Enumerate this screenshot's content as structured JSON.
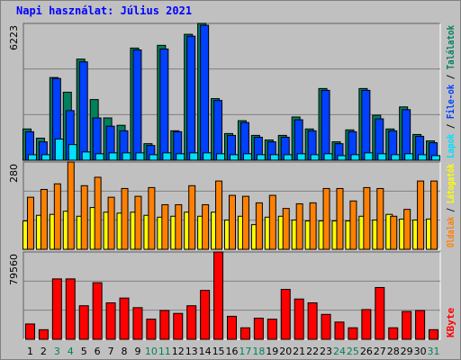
{
  "chart_data": [
    {
      "type": "bar",
      "title": "Napi használat: Július 2021",
      "ylim": [
        0,
        6223
      ],
      "yticks": [
        6223
      ],
      "grid_divisions": 3,
      "legend_separator": " / ",
      "series": [
        {
          "name": "Találatok",
          "color": "#00805c",
          "values": [
            1421,
            1003,
            3761,
            3093,
            4598,
            2759,
            1923,
            1588,
            5100,
            752,
            5225,
            1338,
            5727,
            6223,
            2801,
            1212,
            1797,
            1129,
            920,
            1129,
            1965,
            1421,
            3260,
            836,
            1379,
            3260,
            2048,
            1421,
            2424,
            1170,
            878
          ]
        },
        {
          "name": "File-ok",
          "color": "#0040ff",
          "values": [
            1296,
            836,
            3720,
            2257,
            4473,
            1923,
            1547,
            1338,
            5016,
            669,
            5058,
            1296,
            5643,
            6140,
            2717,
            1129,
            1714,
            1045,
            836,
            1045,
            1839,
            1338,
            3177,
            752,
            1296,
            3177,
            1881,
            1338,
            2299,
            1087,
            794
          ]
        },
        {
          "name": "Lapok",
          "color": "#00e0ff",
          "values": [
            251,
            251,
            961,
            711,
            376,
            293,
            334,
            334,
            334,
            251,
            334,
            293,
            334,
            334,
            293,
            251,
            293,
            251,
            251,
            251,
            293,
            251,
            293,
            209,
            251,
            334,
            293,
            251,
            293,
            251,
            209
          ]
        }
      ]
    },
    {
      "type": "bar",
      "ylim": [
        0,
        280
      ],
      "yticks": [
        280
      ],
      "grid_divisions": 3,
      "legend_separator": " / ",
      "series": [
        {
          "name": "Látogatók",
          "color": "#ffff00",
          "values": [
            91,
            109,
            112,
            122,
            106,
            134,
            119,
            116,
            119,
            109,
            103,
            106,
            119,
            106,
            119,
            94,
            106,
            79,
            103,
            106,
            94,
            91,
            91,
            91,
            91,
            106,
            94,
            112,
            97,
            94,
            97
          ]
        },
        {
          "name": "Oldalak",
          "color": "#ff8000",
          "values": [
            167,
            192,
            210,
            280,
            204,
            231,
            167,
            195,
            170,
            198,
            143,
            143,
            204,
            143,
            219,
            173,
            170,
            149,
            173,
            131,
            146,
            149,
            195,
            195,
            155,
            198,
            195,
            106,
            128,
            219,
            219
          ]
        }
      ]
    },
    {
      "type": "bar",
      "ylim": [
        0,
        79560
      ],
      "yticks": [
        79560
      ],
      "grid_divisions": 3,
      "legend_separator": " / ",
      "categories": [
        "1",
        "2",
        "3",
        "4",
        "5",
        "6",
        "7",
        "8",
        "9",
        "10",
        "11",
        "12",
        "13",
        "14",
        "15",
        "16",
        "17",
        "18",
        "19",
        "20",
        "21",
        "22",
        "23",
        "24",
        "25",
        "26",
        "27",
        "28",
        "29",
        "30",
        "31"
      ],
      "category_colors": [
        "#000000",
        "#000000",
        "#00805c",
        "#00805c",
        "#000000",
        "#000000",
        "#000000",
        "#000000",
        "#000000",
        "#00805c",
        "#00805c",
        "#000000",
        "#000000",
        "#000000",
        "#000000",
        "#000000",
        "#00805c",
        "#00805c",
        "#000000",
        "#000000",
        "#000000",
        "#000000",
        "#000000",
        "#00805c",
        "#00805c",
        "#000000",
        "#000000",
        "#000000",
        "#000000",
        "#000000",
        "#00805c"
      ],
      "series": [
        {
          "name": "KByte",
          "color": "#ff0000",
          "values": [
            13984,
            8740,
            55062,
            55062,
            30590,
            51566,
            33212,
            37582,
            28842,
            18354,
            26220,
            23598,
            30590,
            44574,
            79560,
            20976,
            10488,
            19228,
            18354,
            45448,
            36708,
            33212,
            22724,
            15732,
            10488,
            27094,
            47196,
            10488,
            25346,
            26220,
            8740
          ]
        }
      ]
    }
  ]
}
